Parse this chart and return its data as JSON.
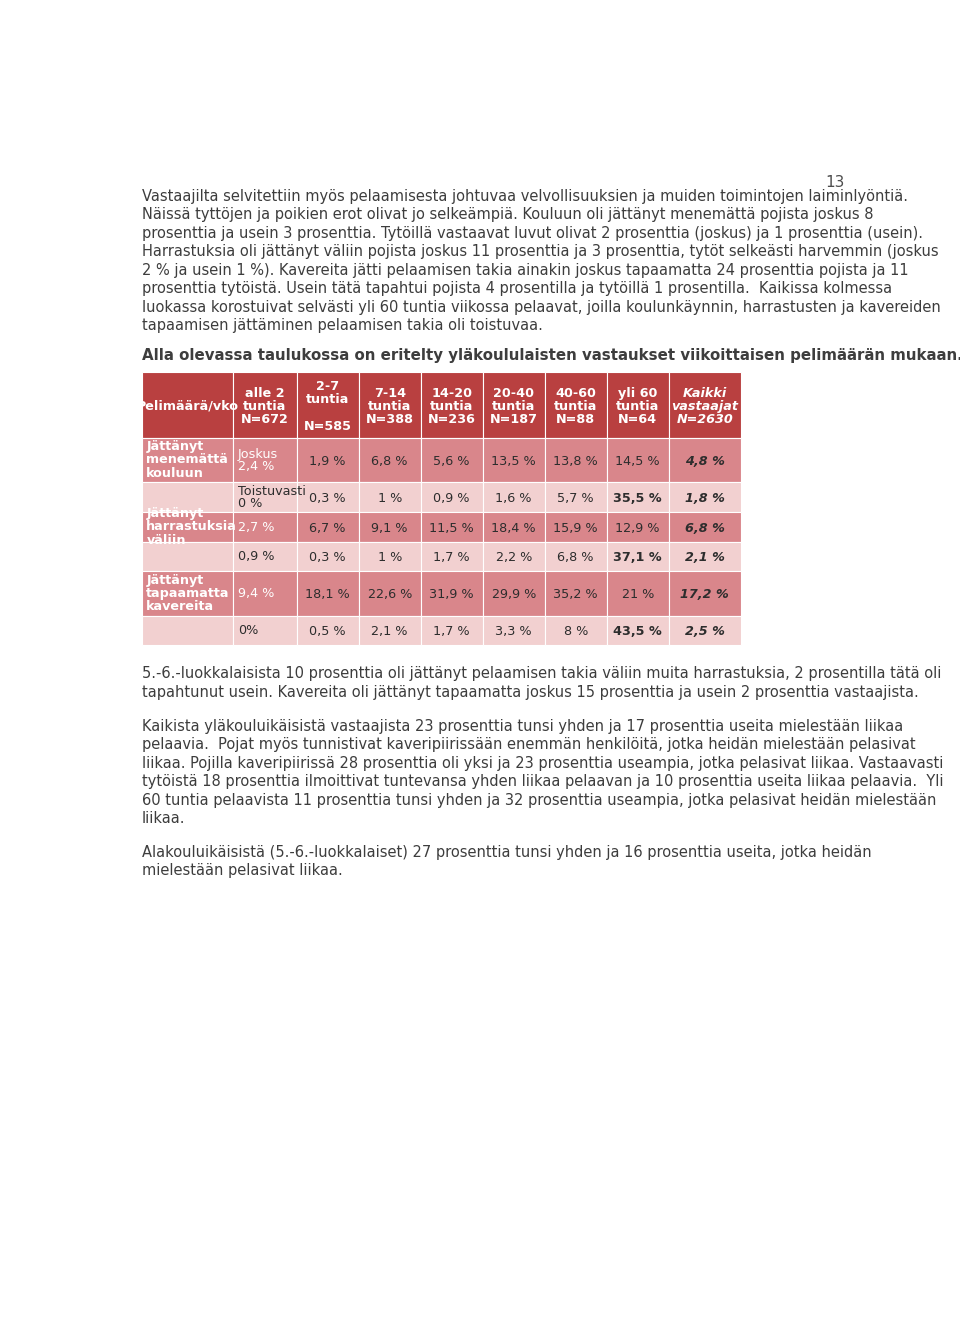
{
  "page_number": "13",
  "background_color": "#ffffff",
  "text_color": "#3d3d3d",
  "header_bg": "#b94040",
  "row_bg_dark": "#d9868b",
  "row_bg_light": "#f2d0d0",
  "col_headers": [
    "Pelimäärä/vko",
    "alle 2\ntuntia\nN=672",
    "2-7\ntuntia\n\nN=585",
    "7-14\ntuntia\nN=388",
    "14-20\ntuntia\nN=236",
    "20-40\ntuntia\nN=187",
    "40-60\ntuntia\nN=88",
    "yli 60\ntuntia\nN=64",
    "Kaikki\nvastaajat\nN=2630"
  ],
  "rows": [
    {
      "label": "Jättänyt\nmenemättä\nkouluun",
      "sub1_label": "Joskus\n2,4 %",
      "sub2_label": "Toistuvasti\n0 %",
      "sub1_values": [
        "1,9 %",
        "6,8 %",
        "5,6 %",
        "13,5 %",
        "13,8 %",
        "14,5 %",
        "4,8 %"
      ],
      "sub2_values": [
        "0,3 %",
        "1 %",
        "0,9 %",
        "1,6 %",
        "5,7 %",
        "35,5 %",
        "1,8 %"
      ],
      "sub2_bold": [
        false,
        false,
        false,
        false,
        false,
        true,
        false
      ],
      "sub1_bold": [
        false,
        false,
        false,
        false,
        false,
        false,
        true
      ]
    },
    {
      "label": "Jättänyt\nharrastuksia\nväliin",
      "sub1_label": "2,7 %",
      "sub2_label": "0,9 %",
      "sub1_values": [
        "6,7 %",
        "9,1 %",
        "11,5 %",
        "18,4 %",
        "15,9 %",
        "12,9 %",
        "6,8 %"
      ],
      "sub2_values": [
        "0,3 %",
        "1 %",
        "1,7 %",
        "2,2 %",
        "6,8 %",
        "37,1 %",
        "2,1 %"
      ],
      "sub2_bold": [
        false,
        false,
        false,
        false,
        false,
        true,
        false
      ],
      "sub1_bold": [
        false,
        false,
        false,
        false,
        false,
        false,
        true
      ]
    },
    {
      "label": "Jättänyt\ntapaamatta\nkavereita",
      "sub1_label": "9,4 %",
      "sub2_label": "0%",
      "sub1_values": [
        "18,1 %",
        "22,6 %",
        "31,9 %",
        "29,9 %",
        "35,2 %",
        "21 %",
        "17,2 %"
      ],
      "sub2_values": [
        "0,5 %",
        "2,1 %",
        "1,7 %",
        "3,3 %",
        "8 %",
        "43,5 %",
        "2,5 %"
      ],
      "sub2_bold": [
        false,
        false,
        false,
        false,
        false,
        true,
        false
      ],
      "sub1_bold": [
        false,
        false,
        false,
        false,
        false,
        false,
        true
      ]
    }
  ],
  "para1_lines": [
    "Vastaajilta selvitettiin myös pelaamisesta johtuvaa velvollisuuksien ja muiden toimintojen laiminlyöntiä.",
    "Näissä tyttöjen ja poikien erot olivat jo selkeämpiä. Kouluun oli jättänyt menemättä pojista joskus 8",
    "prosenttia ja usein 3 prosenttia. Tytöillä vastaavat luvut olivat 2 prosenttia (joskus) ja 1 prosenttia (usein).",
    "Harrastuksia oli jättänyt väliin pojista joskus 11 prosenttia ja 3 prosenttia, tytöt selkeästi harvemmin (joskus",
    "2 % ja usein 1 %). Kavereita jätti pelaamisen takia ainakin joskus tapaamatta 24 prosenttia pojista ja 11",
    "prosenttia tytöistä. Usein tätä tapahtui pojista 4 prosentilla ja tytöillä 1 prosentilla.  Kaikissa kolmessa",
    "luokassa korostuivat selvästi yli 60 tuntia viikossa pelaavat, joilla koulunkäynnin, harrastusten ja kavereiden",
    "tapaamisen jättäminen pelaamisen takia oli toistuvaa."
  ],
  "table_heading": "Alla olevassa taulukossa on eritelty yläkoululaisten vastaukset viikoittaisen pelimäärän mukaan.",
  "para3_lines": [
    "5.-6.-luokkalaisista 10 prosenttia oli jättänyt pelaamisen takia väliin muita harrastuksia, 2 prosentilla tätä oli",
    "tapahtunut usein. Kavereita oli jättänyt tapaamatta joskus 15 prosenttia ja usein 2 prosenttia vastaajista."
  ],
  "para4_lines": [
    "Kaikista yläkouluikäisistä vastaajista 23 prosenttia tunsi yhden ja 17 prosenttia useita mielestään liikaa",
    "pelaavia.  Pojat myös tunnistivat kaveripiirissään enemmän henkilöitä, jotka heidän mielestään pelasivat",
    "liikaa. Pojilla kaveripiirissä 28 prosenttia oli yksi ja 23 prosenttia useampia, jotka pelasivat liikaa. Vastaavasti",
    "tytöistä 18 prosenttia ilmoittivat tuntevansa yhden liikaa pelaavan ja 10 prosenttia useita liikaa pelaavia.  Yli",
    "60 tuntia pelaavista 11 prosenttia tunsi yhden ja 32 prosenttia useampia, jotka pelasivat heidän mielestään",
    "liikaa."
  ],
  "para5_lines": [
    "Alakouluikäisistä (5.-6.-luokkalaiset) 27 prosenttia tunsi yhden ja 16 prosenttia useita, jotka heidän",
    "mielestään pelasivat liikaa."
  ]
}
